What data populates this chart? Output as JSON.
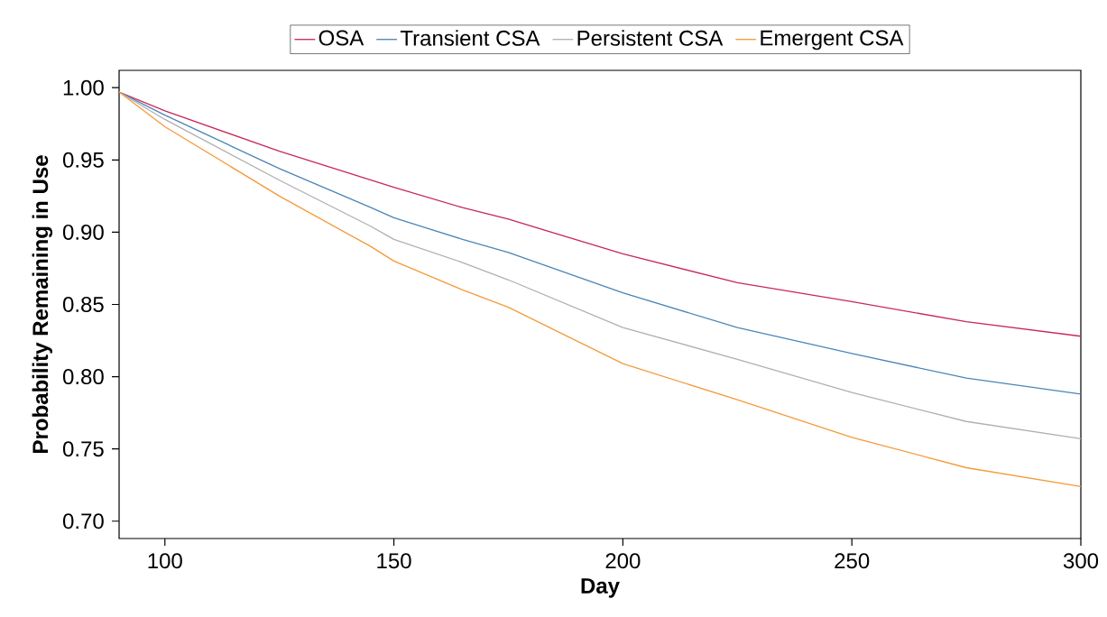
{
  "chart_data": {
    "type": "line",
    "xlabel": "Day",
    "ylabel": "Probability Remaining in Use",
    "x": [
      90,
      100,
      125,
      145,
      150,
      165,
      175,
      200,
      225,
      250,
      275,
      300
    ],
    "series": [
      {
        "name": "OSA",
        "color": "#c8285a",
        "values": [
          0.997,
          0.984,
          0.956,
          0.936,
          0.931,
          0.917,
          0.909,
          0.885,
          0.865,
          0.852,
          0.838,
          0.828
        ]
      },
      {
        "name": "Transient CSA",
        "color": "#4a86b8",
        "values": [
          0.997,
          0.981,
          0.944,
          0.917,
          0.91,
          0.895,
          0.886,
          0.858,
          0.834,
          0.816,
          0.799,
          0.788
        ]
      },
      {
        "name": "Persistent CSA",
        "color": "#b0b0b0",
        "values": [
          0.997,
          0.978,
          0.936,
          0.904,
          0.895,
          0.879,
          0.867,
          0.834,
          0.812,
          0.789,
          0.769,
          0.757
        ]
      },
      {
        "name": "Emergent CSA",
        "color": "#f59a3c",
        "values": [
          0.997,
          0.973,
          0.925,
          0.89,
          0.88,
          0.86,
          0.848,
          0.809,
          0.784,
          0.758,
          0.737,
          0.724
        ]
      }
    ],
    "xlim": [
      90,
      300
    ],
    "xticks": [
      100,
      150,
      200,
      250,
      300
    ],
    "ylim": [
      0.688,
      1.012
    ],
    "yticks": [
      {
        "value": 0.7,
        "label": "0.70"
      },
      {
        "value": 0.75,
        "label": "0.75"
      },
      {
        "value": 0.8,
        "label": "0.80"
      },
      {
        "value": 0.85,
        "label": "0.85"
      },
      {
        "value": 0.9,
        "label": "0.90"
      },
      {
        "value": 0.95,
        "label": "0.95"
      },
      {
        "value": 1.0,
        "label": "1.00"
      }
    ],
    "grid": false,
    "legend": "top",
    "marker": "none",
    "line_style": "solid"
  }
}
